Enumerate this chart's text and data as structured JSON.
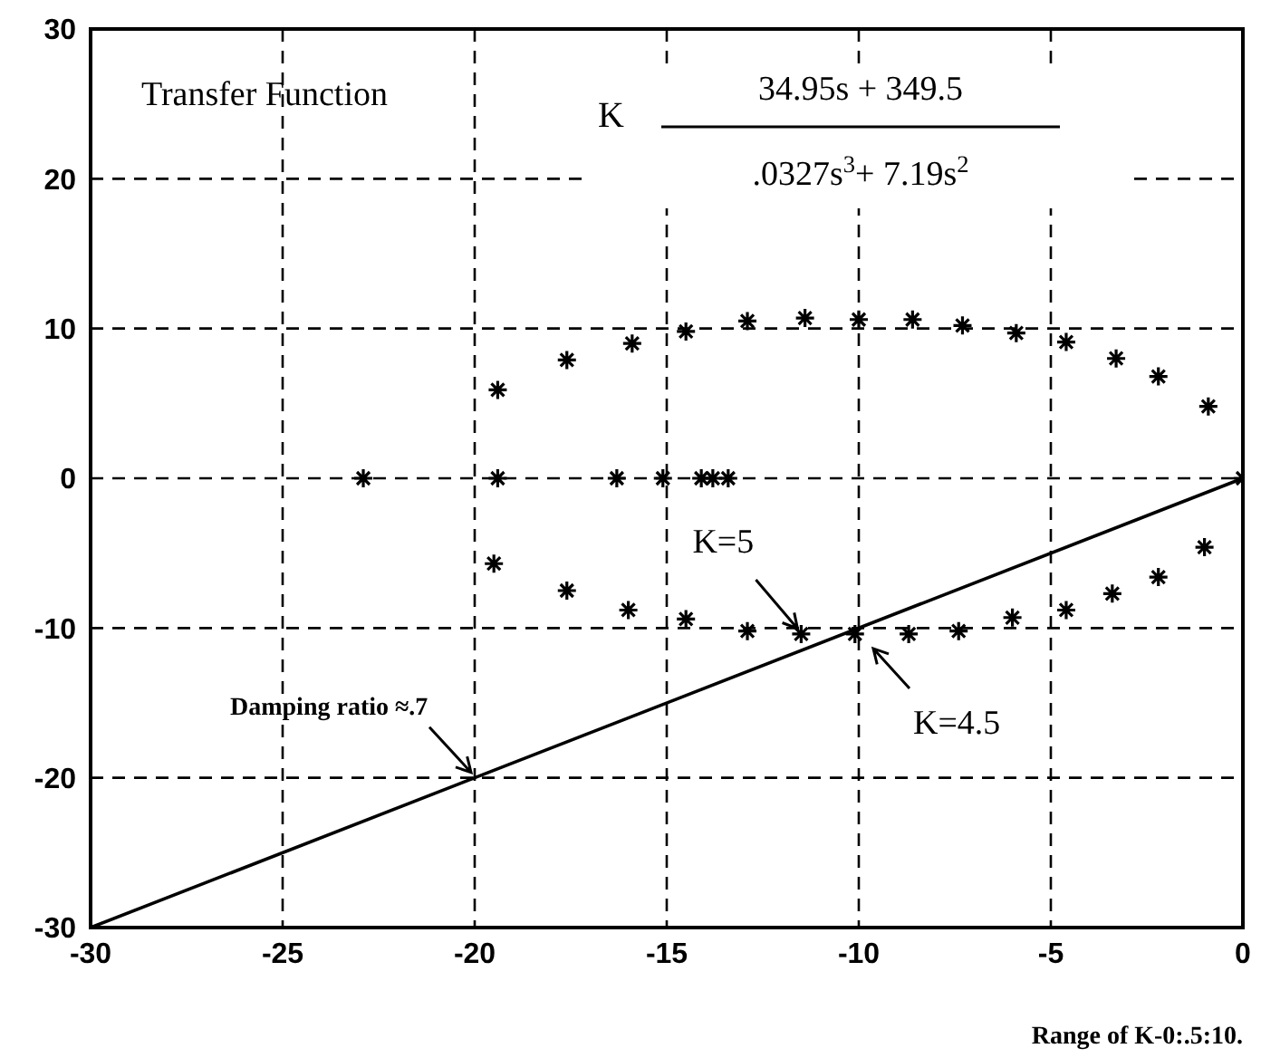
{
  "chart_data": {
    "type": "scatter",
    "xlim": [
      -30,
      0
    ],
    "ylim": [
      -30,
      30
    ],
    "xticks": [
      -30,
      -25,
      -20,
      -15,
      -10,
      -5,
      0
    ],
    "yticks": [
      -30,
      -20,
      -10,
      0,
      10,
      20,
      30
    ],
    "grid": true,
    "marker": "cross",
    "series": [
      {
        "color": "#000000",
        "x": [
          0,
          -19.4,
          -17.6,
          -15.9,
          -14.5,
          -12.9,
          -11.4,
          -10.0,
          -8.6,
          -7.3,
          -5.9,
          -4.6,
          -3.3,
          -2.2,
          -0.9,
          -19.5,
          -17.6,
          -16.0,
          -14.5,
          -12.9,
          -11.5,
          -10.1,
          -8.7,
          -7.4,
          -6.0,
          -4.6,
          -3.4,
          -2.2,
          -1.0,
          -22.9,
          -19.4,
          -16.3,
          -15.1,
          -14.1,
          -13.8,
          -13.4
        ],
        "values": [
          0,
          5.9,
          7.9,
          9.0,
          9.8,
          10.5,
          10.7,
          10.6,
          10.6,
          10.2,
          9.7,
          9.1,
          8.0,
          6.8,
          4.8,
          -5.7,
          -7.5,
          -8.8,
          -9.4,
          -10.2,
          -10.4,
          -10.4,
          -10.4,
          -10.2,
          -9.3,
          -8.8,
          -7.7,
          -6.6,
          -4.6,
          0,
          0,
          0,
          0,
          0,
          0,
          0
        ]
      },
      {
        "type": "line",
        "marker": "none",
        "color": "#000000",
        "x": [
          -30,
          0
        ],
        "values": [
          -30,
          0
        ]
      }
    ],
    "annotations": [
      "Transfer Function",
      "K",
      "34.95s + 349.5",
      ".0327s$^{3}$+ 7.19s$^{2}$",
      {
        "text": "K=5",
        "x": -11.5,
        "y": -10.4
      },
      {
        "text": "K=4.5",
        "x": -10.0,
        "y": -10.4
      },
      {
        "text": "Damping ratio ≈.7",
        "x": -20,
        "y": -20
      },
      "Range of K-0:.5:10."
    ]
  }
}
